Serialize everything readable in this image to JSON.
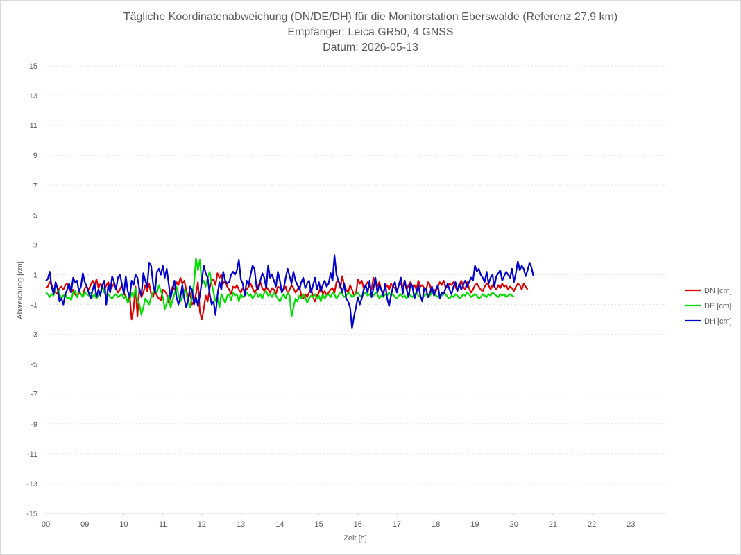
{
  "chart_data": {
    "type": "line",
    "title": "Tägliche Koordinatenabweichung (DN/DE/DH) für die Monitorstation Eberswalde (Referenz 27,9 km)",
    "subtitle_1": "Empfänger: Leica GR50, 4 GNSS",
    "subtitle_2": "Datum: 2026-05-13",
    "xlabel": "Zeit [h]",
    "ylabel": "Abweichung [cm]",
    "xlim": [
      8,
      23.9
    ],
    "ylim": [
      -15,
      15
    ],
    "x_ticks": [
      "00",
      "09",
      "10",
      "11",
      "12",
      "13",
      "14",
      "15",
      "16",
      "17",
      "18",
      "19",
      "20",
      "21",
      "22",
      "23"
    ],
    "y_ticks": [
      15,
      13,
      11,
      9,
      7,
      5,
      3,
      1,
      -1,
      -3,
      -5,
      -7,
      -9,
      -11,
      -13,
      -15
    ],
    "grid": true,
    "legend_position": "right",
    "sample_interval_h": 0.05,
    "x_start": 8.0,
    "series": [
      {
        "name": "DN [cm]",
        "color": "#e00000",
        "values": [
          0.1,
          0.2,
          0.5,
          0.3,
          0.0,
          -0.2,
          -0.3,
          0.1,
          0.2,
          0.0,
          0.3,
          0.4,
          0.1,
          -0.2,
          0.0,
          -0.3,
          -0.5,
          -0.2,
          -0.3,
          -0.4,
          0.1,
          0.2,
          0.0,
          0.3,
          0.6,
          0.3,
          0.7,
          0.1,
          0.4,
          0.2,
          -0.1,
          0.3,
          0.5,
          0.0,
          0.2,
          0.4,
          0.1,
          -0.2,
          0.0,
          0.3,
          -0.2,
          -0.5,
          -0.8,
          -0.4,
          -2.0,
          -1.3,
          0.2,
          -1.8,
          0.1,
          -0.5,
          -0.2,
          0.3,
          -0.1,
          0.4,
          -0.3,
          -0.5,
          0.0,
          -0.4,
          -0.6,
          -0.7,
          0.0,
          -0.1,
          -0.3,
          -0.9,
          -0.5,
          0.2,
          0.0,
          0.5,
          0.3,
          0.8,
          0.4,
          0.6,
          0.0,
          -0.6,
          -0.2,
          -1.0,
          -0.8,
          -0.3,
          0.5,
          -1.5,
          -2.0,
          -1.3,
          -0.4,
          -0.8,
          0.1,
          0.6,
          0.7,
          0.3,
          1.1,
          0.8,
          1.0,
          0.4,
          0.6,
          0.2,
          0.0,
          -0.3,
          0.2,
          0.1,
          0.3,
          0.0,
          -0.2,
          0.1,
          -0.1,
          0.0,
          0.2,
          0.4,
          0.1,
          -0.2,
          0.0,
          0.3,
          0.5,
          0.1,
          -0.1,
          0.2,
          0.0,
          -0.2,
          0.1,
          0.0,
          -0.3,
          0.2,
          0.1,
          -0.1,
          0.0,
          0.2,
          -0.3,
          0.0,
          0.3,
          0.1,
          -0.2,
          0.0,
          0.2,
          -0.4,
          -0.6,
          -0.3,
          -0.5,
          -0.2,
          0.1,
          -0.5,
          -0.8,
          -0.4,
          -0.2,
          0.2,
          -0.3,
          -0.1,
          -0.4,
          -0.2,
          0.0,
          0.1,
          -0.2,
          0.5,
          0.6,
          0.1,
          0.9,
          0.3,
          0.0,
          -0.2,
          0.3,
          0.0,
          -0.4,
          -0.3,
          0.7,
          0.4,
          0.6,
          0.1,
          0.3,
          0.5,
          0.2,
          0.0,
          0.8,
          0.4,
          0.2,
          0.5,
          0.0,
          -0.2,
          0.1,
          0.3,
          0.0,
          0.4,
          0.2,
          0.1,
          -0.1,
          0.3,
          0.4,
          0.2,
          0.6,
          0.0,
          0.3,
          0.5,
          0.2,
          0.3,
          0.0,
          0.6,
          0.2,
          0.3,
          0.1,
          0.0,
          0.5,
          0.3,
          -0.3,
          0.0,
          -0.1,
          0.2,
          0.5,
          0.3,
          0.6,
          0.1,
          0.2,
          0.4,
          0.3,
          0.5,
          0.2,
          -0.1,
          0.3,
          0.6,
          0.2,
          0.0,
          0.5,
          0.1,
          -0.2,
          0.0,
          0.3,
          0.4,
          0.2,
          0.0,
          -0.1,
          0.2,
          0.4,
          0.3,
          0.0,
          0.3,
          0.2,
          0.0,
          0.3,
          0.1,
          0.4,
          0.2,
          0.3,
          0.0,
          0.2,
          0.1,
          -0.1,
          0.2,
          0.4,
          0.3,
          0.0,
          0.4,
          0.2,
          0.0
        ]
      },
      {
        "name": "DE [cm]",
        "color": "#00dd00",
        "values": [
          -0.2,
          -0.3,
          -0.5,
          -0.3,
          -0.4,
          0.2,
          0.1,
          -0.3,
          -0.6,
          -0.4,
          -0.3,
          -0.6,
          -0.5,
          -0.7,
          -0.2,
          -0.1,
          -0.5,
          0.0,
          -0.3,
          -0.5,
          -0.2,
          -0.3,
          -0.4,
          -0.2,
          -0.5,
          -0.3,
          -0.6,
          -0.4,
          -0.2,
          0.3,
          -0.2,
          -0.4,
          -0.3,
          -0.5,
          -0.6,
          -0.4,
          -0.3,
          -0.5,
          -0.4,
          -0.3,
          -0.6,
          -0.4,
          -0.9,
          -0.7,
          -0.2,
          -0.5,
          0.1,
          -0.7,
          -1.0,
          -1.7,
          -1.2,
          -0.6,
          -0.8,
          -1.0,
          -0.5,
          -0.2,
          0.0,
          -0.2,
          0.3,
          -0.1,
          -0.5,
          -1.3,
          -0.9,
          -0.4,
          -1.2,
          -0.7,
          -0.3,
          0.2,
          -0.3,
          -0.8,
          -0.5,
          0.0,
          -0.2,
          -0.8,
          -1.2,
          -0.5,
          0.4,
          2.1,
          1.3,
          2.0,
          0.4,
          0.6,
          0.2,
          0.8,
          1.2,
          0.4,
          -0.2,
          -0.8,
          -0.5,
          -1.2,
          -0.3,
          -0.6,
          -0.9,
          -0.4,
          -0.3,
          -0.7,
          -0.2,
          -0.4,
          -0.3,
          -0.8,
          -0.3,
          -0.5,
          -0.4,
          -0.2,
          -0.4,
          -0.3,
          -0.6,
          -0.4,
          -0.2,
          -0.5,
          -0.3,
          -0.6,
          -0.2,
          -0.1,
          -0.4,
          -0.3,
          -0.5,
          -0.2,
          -0.4,
          -0.6,
          -0.8,
          -0.5,
          -0.3,
          -0.6,
          -0.2,
          -0.4,
          -1.8,
          -1.2,
          -0.6,
          -0.8,
          -0.4,
          -0.6,
          -0.3,
          -0.5,
          -0.9,
          -0.6,
          -0.4,
          -0.5,
          -0.3,
          -0.6,
          -0.4,
          -0.8,
          -0.3,
          -0.6,
          -0.4,
          -0.3,
          -0.5,
          -0.2,
          -0.3,
          -0.6,
          -0.4,
          -0.2,
          -0.3,
          -0.5,
          -0.4,
          -0.2,
          -0.3,
          -0.5,
          -0.4,
          -0.3,
          -0.2,
          -0.4,
          -0.5,
          -0.3,
          -0.2,
          -0.4,
          -0.3,
          -0.5,
          -0.4,
          -0.2,
          -0.3,
          -0.6,
          -0.4,
          -0.5,
          -0.3,
          -0.4,
          -0.2,
          -0.4,
          -0.3,
          -0.5,
          -0.6,
          -0.4,
          -0.3,
          -0.5,
          -0.4,
          -0.6,
          -0.3,
          -0.4,
          -0.5,
          -0.3,
          -0.2,
          -0.4,
          -0.5,
          -0.6,
          -0.4,
          -0.3,
          -0.5,
          -0.4,
          -0.2,
          -0.3,
          -0.4,
          -0.5,
          -0.3,
          -0.4,
          -0.2,
          -0.3,
          -0.5,
          -0.6,
          -0.4,
          -0.5,
          -0.3,
          -0.4,
          -0.6,
          -0.5,
          -0.3,
          -0.4,
          -0.2,
          -0.3,
          -0.5,
          -0.4,
          -0.3,
          -0.4,
          -0.6,
          -0.5,
          -0.3,
          -0.4,
          -0.5,
          -0.3,
          -0.4,
          -0.2,
          -0.3,
          -0.4,
          -0.5,
          -0.3,
          -0.4,
          -0.3,
          -0.5,
          -0.4,
          -0.3,
          -0.4,
          -0.5
        ]
      },
      {
        "name": "DH [cm]",
        "color": "#0000cc",
        "values": [
          0.6,
          0.7,
          1.2,
          0.2,
          -0.3,
          0.5,
          0.1,
          -0.8,
          -0.6,
          -1.0,
          -0.3,
          0.0,
          0.4,
          -0.2,
          0.8,
          0.5,
          0.6,
          -0.1,
          0.2,
          1.1,
          0.5,
          0.2,
          -0.2,
          -0.6,
          0.0,
          0.4,
          -0.5,
          0.0,
          -0.4,
          0.3,
          0.6,
          -1.0,
          0.3,
          -0.2,
          0.9,
          0.5,
          0.0,
          0.8,
          1.0,
          0.4,
          -0.3,
          0.9,
          -0.1,
          -0.5,
          0.6,
          0.3,
          1.0,
          0.8,
          0.0,
          -0.4,
          1.1,
          0.6,
          0.2,
          1.8,
          1.6,
          0.4,
          -0.2,
          1.2,
          1.4,
          1.0,
          1.6,
          0.8,
          1.4,
          0.4,
          -0.6,
          0.0,
          0.6,
          -0.5,
          -1.0,
          -0.5,
          0.3,
          -0.6,
          -1.2,
          -0.7,
          0.2,
          0.0,
          -1.0,
          -0.5,
          -1.1,
          -0.4,
          0.6,
          1.6,
          1.1,
          0.8,
          -0.3,
          -1.0,
          -0.8,
          -1.7,
          -0.4,
          0.5,
          0.0,
          1.2,
          0.6,
          0.4,
          0.5,
          1.0,
          1.2,
          1.0,
          1.3,
          2.0,
          0.7,
          0.4,
          -0.4,
          0.6,
          0.3,
          1.0,
          1.6,
          1.4,
          0.2,
          0.0,
          0.6,
          1.1,
          0.8,
          0.1,
          1.6,
          0.8,
          1.0,
          0.6,
          0.2,
          1.2,
          0.6,
          -0.2,
          0.1,
          0.8,
          1.4,
          0.9,
          0.4,
          1.2,
          0.6,
          0.3,
          0.0,
          0.5,
          0.8,
          0.1,
          0.4,
          0.6,
          -0.2,
          0.3,
          0.8,
          0.0,
          0.5,
          -0.1,
          0.3,
          0.6,
          0.2,
          0.4,
          1.1,
          0.6,
          2.3,
          1.0,
          0.6,
          0.3,
          -0.2,
          0.4,
          -0.6,
          -0.8,
          -1.2,
          -2.6,
          -1.8,
          -1.2,
          -0.5,
          -1.0,
          -0.6,
          0.0,
          0.3,
          -0.2,
          0.6,
          -0.5,
          0.1,
          0.8,
          -0.2,
          0.3,
          0.0,
          -0.4,
          0.4,
          -0.6,
          -1.1,
          -0.4,
          0.2,
          0.5,
          -0.2,
          0.3,
          0.8,
          -0.3,
          0.6,
          0.0,
          -0.5,
          0.4,
          0.2,
          -0.6,
          -0.2,
          0.3,
          -0.4,
          -0.8,
          0.1,
          0.0,
          -0.5,
          -0.2,
          0.2,
          -0.4,
          0.0,
          0.3,
          -0.6,
          -0.2,
          -0.3,
          0.1,
          0.4,
          0.0,
          -0.3,
          0.2,
          0.5,
          -0.1,
          0.4,
          0.0,
          0.3,
          0.6,
          0.2,
          0.5,
          0.8,
          0.6,
          1.6,
          1.2,
          1.4,
          1.0,
          0.8,
          0.5,
          1.2,
          0.4,
          0.8,
          1.0,
          0.2,
          0.9,
          1.1,
          1.3,
          0.6,
          0.9,
          1.2,
          1.0,
          0.8,
          1.4,
          0.5,
          1.1,
          1.9,
          1.3,
          1.6,
          1.4,
          0.9,
          1.3,
          1.8,
          1.5,
          0.9
        ]
      }
    ]
  }
}
